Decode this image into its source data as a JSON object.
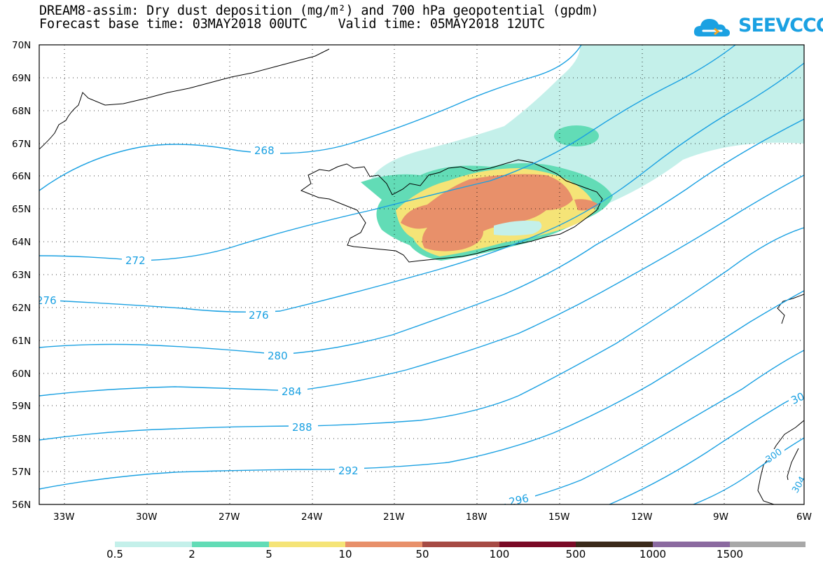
{
  "header": {
    "title_line1": "DREAM8-assim: Dry dust deposition (mg/m²) and 700 hPa geopotential (gpdm)",
    "title_line2": "Forecast base time: 03MAY2018 00UTC    Valid time: 05MAY2018 12UTC",
    "logo_text": "SEEVCCC",
    "logo_icon": "cloud-logo-icon"
  },
  "axes": {
    "lat_labels": [
      "70N",
      "69N",
      "68N",
      "67N",
      "66N",
      "65N",
      "64N",
      "63N",
      "62N",
      "61N",
      "60N",
      "59N",
      "58N",
      "57N",
      "56N"
    ],
    "lon_labels": [
      "33W",
      "30W",
      "27W",
      "24W",
      "21W",
      "18W",
      "15W",
      "12W",
      "9W",
      "6W"
    ],
    "lat_range": [
      56,
      70
    ],
    "lon_range": [
      -34.2,
      -6
    ],
    "grid": "dotted"
  },
  "contours": {
    "field": "700 hPa geopotential",
    "unit": "gpdm",
    "color": "#1ba1e2",
    "labels": [
      "268",
      "272",
      "276",
      "276",
      "280",
      "284",
      "288",
      "292",
      "296",
      "30",
      "300",
      "304"
    ]
  },
  "legend": {
    "colors": [
      "#c4f0ea",
      "#62dcb6",
      "#f5e477",
      "#e8906a",
      "#a64b44",
      "#7a0a26",
      "#3b2a1a",
      "#8b6aa0",
      "#a8a8a8"
    ],
    "labels": [
      "0.5",
      "2",
      "5",
      "10",
      "50",
      "100",
      "500",
      "1000",
      "1500"
    ]
  }
}
